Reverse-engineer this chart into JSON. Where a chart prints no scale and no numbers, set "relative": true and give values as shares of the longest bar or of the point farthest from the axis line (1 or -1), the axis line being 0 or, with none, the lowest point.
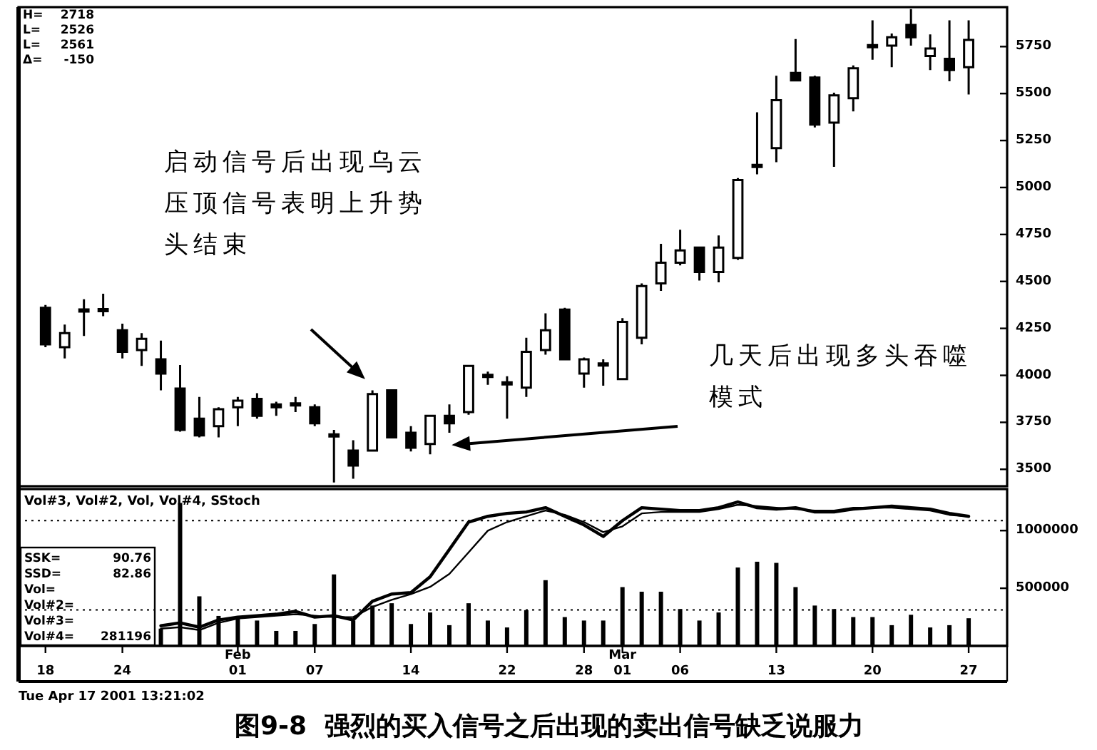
{
  "chart_data": [
    {
      "type": "candlestick",
      "title": "图9-8  强烈的买入信号之后出现的卖出信号缺乏说服力",
      "categories": [
        null,
        null,
        null,
        null,
        null,
        null,
        null,
        null,
        null,
        null,
        null,
        null,
        null,
        null,
        null,
        null,
        null,
        null,
        null,
        null,
        null,
        null,
        null,
        null,
        null,
        null,
        null,
        null,
        null,
        null,
        null,
        null,
        null,
        null,
        null,
        null,
        null,
        null,
        null,
        null,
        null,
        null,
        null,
        null,
        null,
        null,
        null,
        null,
        null
      ],
      "ohlc": [
        [
          4360,
          4375,
          4150,
          4165
        ],
        [
          4150,
          4270,
          4090,
          4225
        ],
        [
          4350,
          4405,
          4210,
          4340
        ],
        [
          4350,
          4435,
          4315,
          4345
        ],
        [
          4240,
          4275,
          4090,
          4125
        ],
        [
          4135,
          4225,
          4050,
          4195
        ],
        [
          4085,
          4185,
          3920,
          4010
        ],
        [
          3930,
          4055,
          3700,
          3710
        ],
        [
          3770,
          3885,
          3670,
          3680
        ],
        [
          3730,
          3830,
          3670,
          3820
        ],
        [
          3830,
          3885,
          3730,
          3865
        ],
        [
          3875,
          3905,
          3770,
          3785
        ],
        [
          3845,
          3860,
          3785,
          3830
        ],
        [
          3850,
          3885,
          3805,
          3840
        ],
        [
          3830,
          3845,
          3730,
          3745
        ],
        [
          3685,
          3710,
          3430,
          3675
        ],
        [
          3600,
          3655,
          3450,
          3520
        ],
        [
          3600,
          3920,
          3595,
          3900
        ],
        [
          3920,
          3925,
          3665,
          3670
        ],
        [
          3695,
          3730,
          3595,
          3615
        ],
        [
          3635,
          3790,
          3580,
          3785
        ],
        [
          3785,
          3845,
          3695,
          3745
        ],
        [
          3805,
          4055,
          3790,
          4050
        ],
        [
          4000,
          4020,
          3950,
          3995
        ],
        [
          3960,
          3995,
          3770,
          3955
        ],
        [
          3935,
          4200,
          3885,
          4125
        ],
        [
          4135,
          4330,
          4110,
          4240
        ],
        [
          4350,
          4360,
          4080,
          4085
        ],
        [
          4010,
          4095,
          3935,
          4085
        ],
        [
          4060,
          4085,
          3945,
          4055
        ],
        [
          3980,
          4305,
          3975,
          4285
        ],
        [
          4200,
          4490,
          4165,
          4475
        ],
        [
          4490,
          4700,
          4450,
          4600
        ],
        [
          4600,
          4775,
          4585,
          4665
        ],
        [
          4680,
          4685,
          4505,
          4550
        ],
        [
          4550,
          4745,
          4495,
          4680
        ],
        [
          4625,
          5050,
          4615,
          5040
        ],
        [
          5120,
          5400,
          5070,
          5110
        ],
        [
          5210,
          5595,
          5135,
          5465
        ],
        [
          5610,
          5790,
          5565,
          5570
        ],
        [
          5585,
          5595,
          5320,
          5335
        ],
        [
          5345,
          5505,
          5110,
          5490
        ],
        [
          5475,
          5650,
          5405,
          5635
        ],
        [
          5755,
          5890,
          5680,
          5750
        ],
        [
          5755,
          5820,
          5640,
          5800
        ],
        [
          5865,
          5950,
          5755,
          5800
        ],
        [
          5700,
          5815,
          5625,
          5740
        ],
        [
          5685,
          5890,
          5565,
          5625
        ],
        [
          5640,
          5890,
          5495,
          5785
        ]
      ],
      "color": "#000000",
      "ylim": [
        3410,
        5960
      ],
      "yticks": [
        3500,
        3750,
        4000,
        4250,
        4500,
        4750,
        5000,
        5250,
        5500,
        5750
      ],
      "tick_labels": "y",
      "annotations": [
        "H= 2718",
        "L= 2526",
        "L= 2561",
        "Δ= -150",
        "启动信号后出现乌云压顶信号表明上升势头结束",
        "几天后出现多头吞噬模式"
      ]
    },
    {
      "type": "bar",
      "title": "Vol#3, Vol#2, Vol, Vol#4, SStoch",
      "categories": [
        "18",
        null,
        null,
        null,
        "24",
        null,
        null,
        null,
        null,
        null,
        "Feb\n01",
        null,
        null,
        null,
        "07",
        null,
        null,
        null,
        null,
        "14",
        null,
        null,
        null,
        null,
        "22",
        null,
        null,
        null,
        "28",
        null,
        "Mar\n01",
        null,
        null,
        "06",
        null,
        null,
        null,
        null,
        "13",
        null,
        null,
        null,
        null,
        "20",
        null,
        null,
        null,
        null,
        "27"
      ],
      "values": [
        null,
        null,
        null,
        null,
        null,
        null,
        150000,
        1240000,
        430000,
        260000,
        260000,
        220000,
        130000,
        130000,
        190000,
        620000,
        220000,
        350000,
        370000,
        190000,
        290000,
        180000,
        370000,
        220000,
        160000,
        310000,
        570000,
        250000,
        220000,
        220000,
        510000,
        470000,
        470000,
        320000,
        220000,
        290000,
        680000,
        730000,
        720000,
        510000,
        350000,
        320000,
        250000,
        250000,
        180000,
        270000,
        160000,
        180000,
        240000
      ],
      "color": "#000000",
      "ylim": [
        0,
        1360000
      ],
      "yticks": [
        500000,
        1000000
      ],
      "annotations": [
        "SSK= 90.76",
        "SSD= 82.86",
        "Vol=",
        "Vol#2=",
        "Vol#3=",
        "Vol#4= 281196",
        "Tue Apr 17 2001 13:21:02"
      ]
    },
    {
      "type": "line",
      "relative": true,
      "series": [
        {
          "color": "#000000",
          "values": [
            null,
            null,
            null,
            null,
            null,
            null,
            0.14,
            0.16,
            0.13,
            0.18,
            0.2,
            0.21,
            0.22,
            0.24,
            0.2,
            0.21,
            0.18,
            0.31,
            0.36,
            0.37,
            0.48,
            0.67,
            0.86,
            0.9,
            0.92,
            0.93,
            0.96,
            0.9,
            0.84,
            0.76,
            0.87,
            0.96,
            0.95,
            0.94,
            0.94,
            0.96,
            1.0,
            0.96,
            0.95,
            0.96,
            0.93,
            0.93,
            0.95,
            0.96,
            0.97,
            0.96,
            0.95,
            0.92,
            0.9
          ]
        },
        {
          "color": "#000000",
          "values": [
            null,
            null,
            null,
            null,
            null,
            null,
            0.12,
            0.13,
            0.11,
            0.16,
            0.19,
            0.2,
            0.21,
            0.22,
            0.21,
            0.2,
            0.2,
            0.27,
            0.32,
            0.36,
            0.41,
            0.5,
            0.65,
            0.8,
            0.86,
            0.9,
            0.94,
            0.91,
            0.86,
            0.79,
            0.83,
            0.92,
            0.93,
            0.93,
            0.93,
            0.95,
            0.98,
            0.97,
            0.96,
            0.95,
            0.94,
            0.94,
            0.96,
            0.96,
            0.96,
            0.95,
            0.94,
            0.91,
            0.9
          ]
        }
      ],
      "ref_lines": [
        {
          "axis": "y",
          "value": 0.87,
          "line_style": "dotted"
        },
        {
          "axis": "y",
          "value": 0.25,
          "line_style": "dotted"
        }
      ]
    }
  ]
}
